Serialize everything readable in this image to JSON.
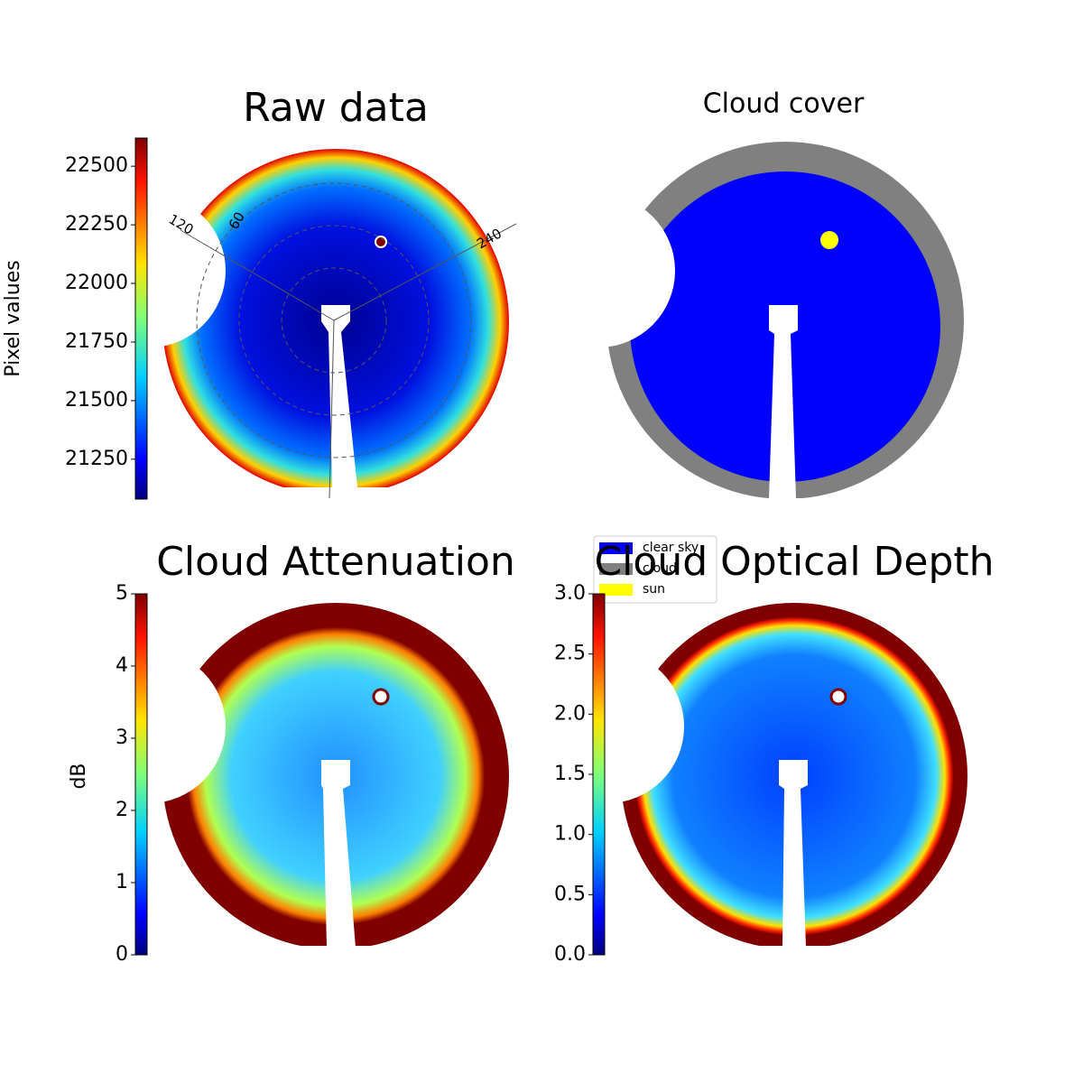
{
  "chart_data": [
    {
      "type": "image",
      "title": "Raw data",
      "colorbar_label": "Pixel values",
      "clim": [
        21080,
        22620
      ],
      "cticks": [
        21250,
        21500,
        21750,
        22000,
        22250,
        22500
      ],
      "annotations": [
        "120",
        "60",
        "240"
      ]
    },
    {
      "type": "image",
      "title": "Cloud cover",
      "legend": [
        {
          "name": "clear sky",
          "color": "#0000ff"
        },
        {
          "name": "cloud",
          "color": "#808080"
        },
        {
          "name": "sun",
          "color": "#ffff00"
        }
      ]
    },
    {
      "type": "image",
      "title": "Cloud Attenuation",
      "colorbar_label": "dB",
      "clim": [
        0,
        5
      ],
      "cticks": [
        0,
        1,
        2,
        3,
        4,
        5
      ]
    },
    {
      "type": "image",
      "title": "Cloud Optical Depth",
      "clim": [
        0,
        3
      ],
      "cticks": [
        {
          "value": 0,
          "label": "0.0"
        },
        {
          "value": 0.5,
          "label": "0.5"
        },
        {
          "value": 1,
          "label": "1.0"
        },
        {
          "value": 1.5,
          "label": "1.5"
        },
        {
          "value": 2,
          "label": "2.0"
        },
        {
          "value": 2.5,
          "label": "2.5"
        },
        {
          "value": 3,
          "label": "3.0"
        }
      ]
    }
  ]
}
